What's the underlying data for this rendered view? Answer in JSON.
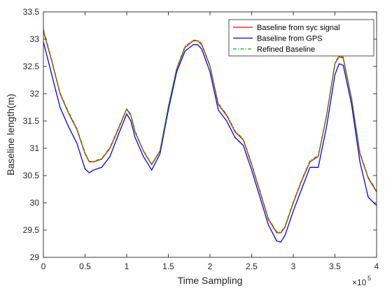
{
  "chart_data": {
    "type": "line",
    "title": "",
    "xlabel": "Time Sampling",
    "ylabel": "Baseline length(m)",
    "x_exponent_label": "×10",
    "x_exponent_power": "5",
    "xlim": [
      0,
      4
    ],
    "ylim": [
      29,
      33.5
    ],
    "x_ticks": [
      0,
      0.5,
      1,
      1.5,
      2,
      2.5,
      3,
      3.5,
      4
    ],
    "x_tick_labels": [
      "0",
      "0.5",
      "1",
      "1.5",
      "2",
      "2.5",
      "3",
      "3.5",
      "4"
    ],
    "y_ticks": [
      29,
      29.5,
      30,
      30.5,
      31,
      31.5,
      32,
      32.5,
      33,
      33.5
    ],
    "y_tick_labels": [
      "29",
      "29.5",
      "30",
      "30.5",
      "31",
      "31.5",
      "32",
      "32.5",
      "33",
      "33.5"
    ],
    "grid": false,
    "legend_position": "top-right",
    "x": [
      0,
      0.1,
      0.2,
      0.3,
      0.4,
      0.5,
      0.55,
      0.6,
      0.7,
      0.8,
      0.9,
      1.0,
      1.05,
      1.1,
      1.2,
      1.3,
      1.4,
      1.5,
      1.6,
      1.7,
      1.8,
      1.85,
      1.9,
      2.0,
      2.1,
      2.2,
      2.3,
      2.4,
      2.5,
      2.6,
      2.7,
      2.8,
      2.85,
      2.9,
      3.0,
      3.1,
      3.2,
      3.3,
      3.4,
      3.5,
      3.55,
      3.6,
      3.7,
      3.8,
      3.9,
      4.0
    ],
    "series": [
      {
        "name": "Baseline from sync signal",
        "legend_label": "Baseline from syc signal",
        "color": "#ff0000",
        "dash": "solid",
        "values": [
          33.15,
          32.6,
          32.0,
          31.65,
          31.35,
          30.9,
          30.75,
          30.75,
          30.8,
          31.0,
          31.35,
          31.72,
          31.6,
          31.3,
          30.95,
          30.7,
          30.95,
          31.75,
          32.45,
          32.85,
          32.97,
          32.97,
          32.9,
          32.5,
          31.8,
          31.6,
          31.3,
          31.15,
          30.7,
          30.2,
          29.7,
          29.45,
          29.45,
          29.55,
          30.0,
          30.4,
          30.75,
          30.85,
          31.6,
          32.55,
          32.68,
          32.65,
          31.9,
          30.9,
          30.45,
          30.2
        ]
      },
      {
        "name": "Baseline from GPS",
        "legend_label": "Baseline from GPS",
        "color": "#0000ff",
        "dash": "solid",
        "values": [
          32.95,
          32.35,
          31.75,
          31.4,
          31.1,
          30.62,
          30.55,
          30.6,
          30.65,
          30.85,
          31.25,
          31.63,
          31.5,
          31.2,
          30.85,
          30.6,
          30.9,
          31.7,
          32.4,
          32.78,
          32.9,
          32.9,
          32.82,
          32.4,
          31.7,
          31.5,
          31.2,
          31.05,
          30.6,
          30.1,
          29.6,
          29.3,
          29.28,
          29.4,
          29.85,
          30.25,
          30.65,
          30.65,
          31.4,
          32.35,
          32.55,
          32.52,
          31.8,
          30.75,
          30.1,
          29.95
        ]
      },
      {
        "name": "Refined Baseline",
        "legend_label": "Refined Baseline",
        "color": "#00b400",
        "dash": "dashdot",
        "values": [
          33.18,
          32.62,
          32.02,
          31.67,
          31.37,
          30.92,
          30.76,
          30.76,
          30.81,
          31.02,
          31.37,
          31.73,
          31.62,
          31.32,
          30.96,
          30.71,
          30.96,
          31.77,
          32.47,
          32.87,
          32.98,
          32.98,
          32.92,
          32.52,
          31.82,
          31.62,
          31.32,
          31.17,
          30.72,
          30.22,
          29.72,
          29.47,
          29.46,
          29.57,
          30.02,
          30.42,
          30.77,
          30.87,
          31.62,
          32.57,
          32.7,
          32.67,
          31.92,
          30.92,
          30.47,
          30.22
        ]
      }
    ]
  }
}
